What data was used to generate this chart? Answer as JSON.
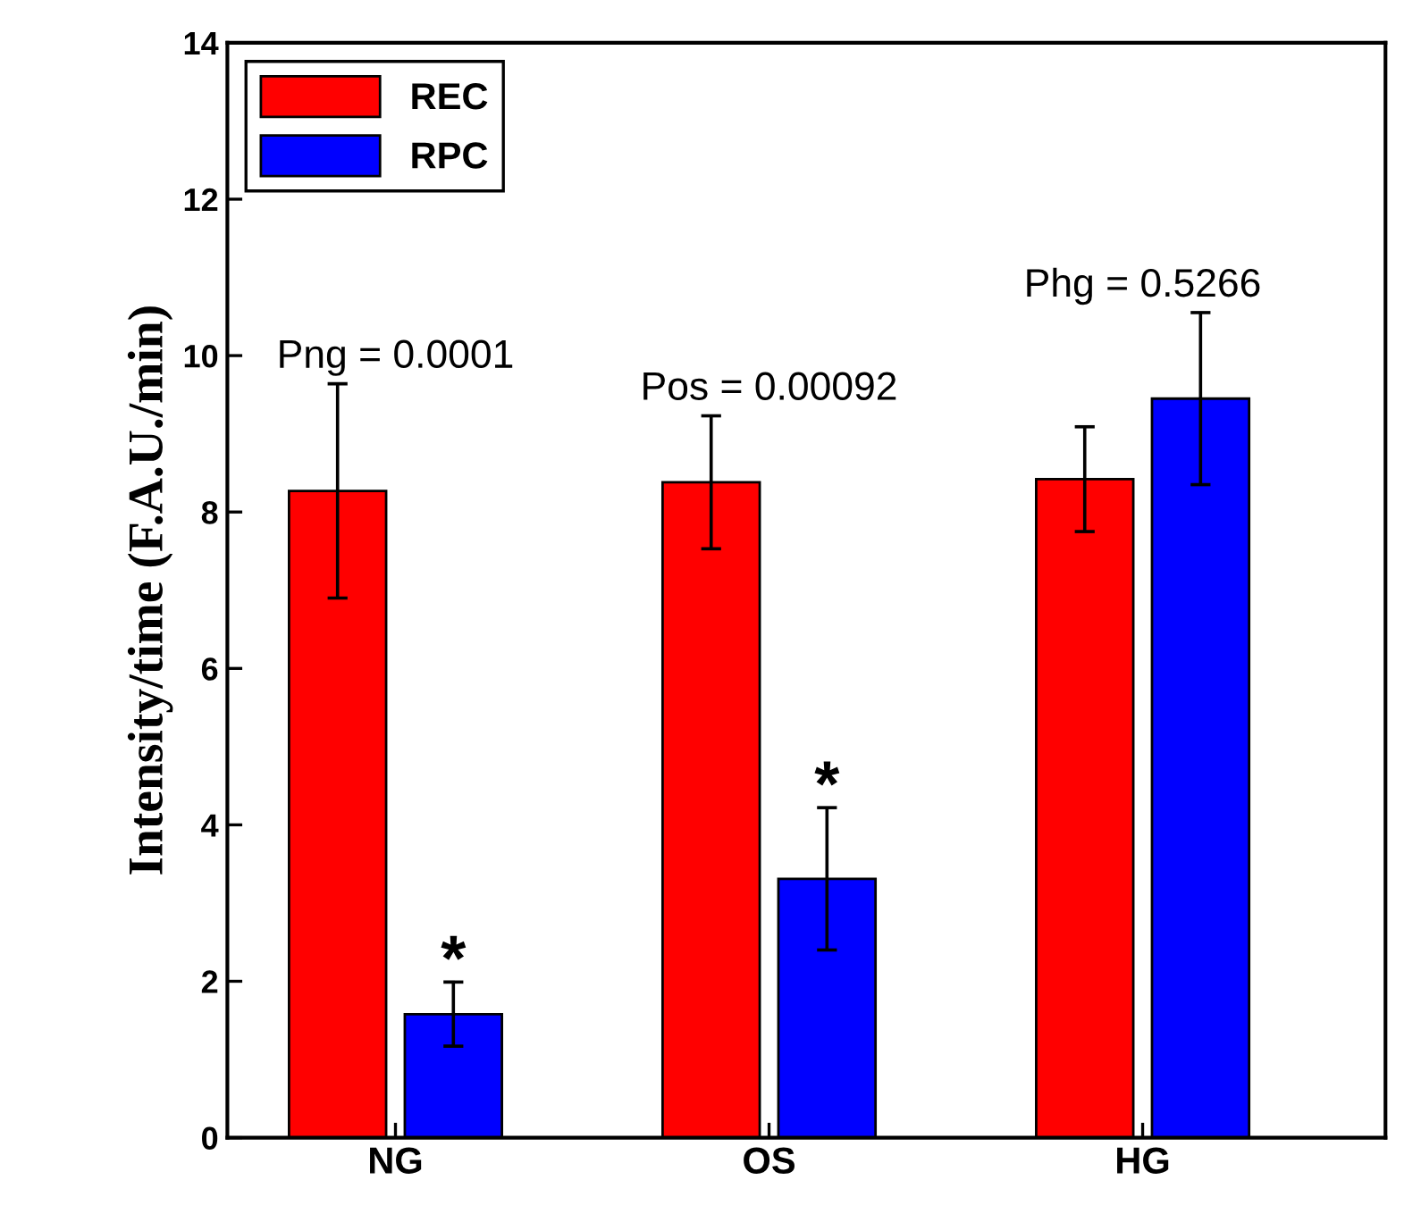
{
  "chart_data": {
    "type": "bar",
    "ylabel": "Intensity/time (F.A.U./min)",
    "categories": [
      "NG",
      "OS",
      "HG"
    ],
    "series": [
      {
        "name": "REC",
        "color": "#ff0000",
        "values": [
          8.27,
          8.38,
          8.42
        ],
        "errors": [
          1.37,
          0.85,
          0.67
        ]
      },
      {
        "name": "RPC",
        "color": "#0000ff",
        "values": [
          1.58,
          3.31,
          9.45
        ],
        "errors": [
          0.41,
          0.91,
          1.1
        ]
      }
    ],
    "ylim": [
      0,
      14
    ],
    "yticks": [
      0,
      2,
      4,
      6,
      8,
      10,
      12,
      14
    ],
    "legend": "top left",
    "grid": false,
    "annotations": [
      "Png = 0.0001",
      "Pos = 0.00092",
      "Phg = 0.5266",
      "*",
      "*"
    ]
  }
}
